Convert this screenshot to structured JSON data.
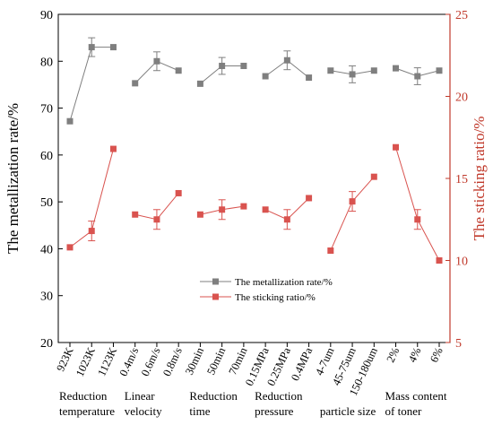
{
  "chart_data": {
    "type": "line",
    "left_axis": {
      "label": "The metallization rate/%",
      "ylim": [
        20,
        90
      ],
      "ticks": [
        20,
        30,
        40,
        50,
        60,
        70,
        80,
        90
      ],
      "color": "#000000"
    },
    "right_axis": {
      "label": "The sticking ratio/%",
      "ylim": [
        5,
        25
      ],
      "ticks": [
        5,
        10,
        15,
        20,
        25
      ],
      "color": "#c0392b"
    },
    "groups": [
      {
        "name": [
          "Reduction",
          "temperature"
        ],
        "categories": [
          "923K",
          "1023K",
          "1123K"
        ],
        "metallization": [
          67.2,
          83,
          83
        ],
        "metallization_err": [
          null,
          2,
          null
        ],
        "sticking": [
          10.8,
          11.8,
          16.8
        ],
        "sticking_err": [
          null,
          0.6,
          null
        ]
      },
      {
        "name": [
          "Linear",
          "velocity"
        ],
        "categories": [
          "0.4m/s",
          "0.6m/s",
          "0.8m/s"
        ],
        "metallization": [
          75.3,
          80,
          78
        ],
        "metallization_err": [
          null,
          2,
          null
        ],
        "sticking": [
          12.8,
          12.5,
          14.1
        ],
        "sticking_err": [
          null,
          0.6,
          null
        ]
      },
      {
        "name": [
          "Reduction",
          "time"
        ],
        "categories": [
          "30min",
          "50min",
          "70min"
        ],
        "metallization": [
          75.2,
          79,
          79
        ],
        "metallization_err": [
          null,
          1.8,
          null
        ],
        "sticking": [
          12.8,
          13.1,
          13.3
        ],
        "sticking_err": [
          null,
          0.6,
          null
        ]
      },
      {
        "name": [
          "Reduction",
          "pressure"
        ],
        "categories": [
          "0.15MPa",
          "0.25MPa",
          "0.4MPa"
        ],
        "metallization": [
          76.8,
          80.2,
          76.5
        ],
        "metallization_err": [
          null,
          2,
          null
        ],
        "sticking": [
          13.1,
          12.5,
          13.8
        ],
        "sticking_err": [
          null,
          0.6,
          null
        ]
      },
      {
        "name": [
          "",
          "particle size"
        ],
        "categories": [
          "4-7um",
          "45-75um",
          "150-180um"
        ],
        "metallization": [
          78,
          77.2,
          78
        ],
        "metallization_err": [
          null,
          1.8,
          null
        ],
        "sticking": [
          10.6,
          13.6,
          15.1
        ],
        "sticking_err": [
          null,
          0.6,
          null
        ]
      },
      {
        "name": [
          "Mass content",
          "of toner"
        ],
        "categories": [
          "2%",
          "4%",
          "6%"
        ],
        "metallization": [
          78.5,
          76.8,
          78
        ],
        "metallization_err": [
          null,
          1.8,
          null
        ],
        "sticking": [
          16.9,
          12.5,
          10
        ],
        "sticking_err": [
          null,
          0.6,
          null
        ]
      }
    ],
    "series": [
      {
        "name": "The metallization rate/%",
        "axis": "left",
        "color": "#7f7f7f",
        "marker": "square"
      },
      {
        "name": "The sticking ratio/%",
        "axis": "right",
        "color": "#d9534f",
        "marker": "square"
      }
    ],
    "legend_position": "center"
  }
}
